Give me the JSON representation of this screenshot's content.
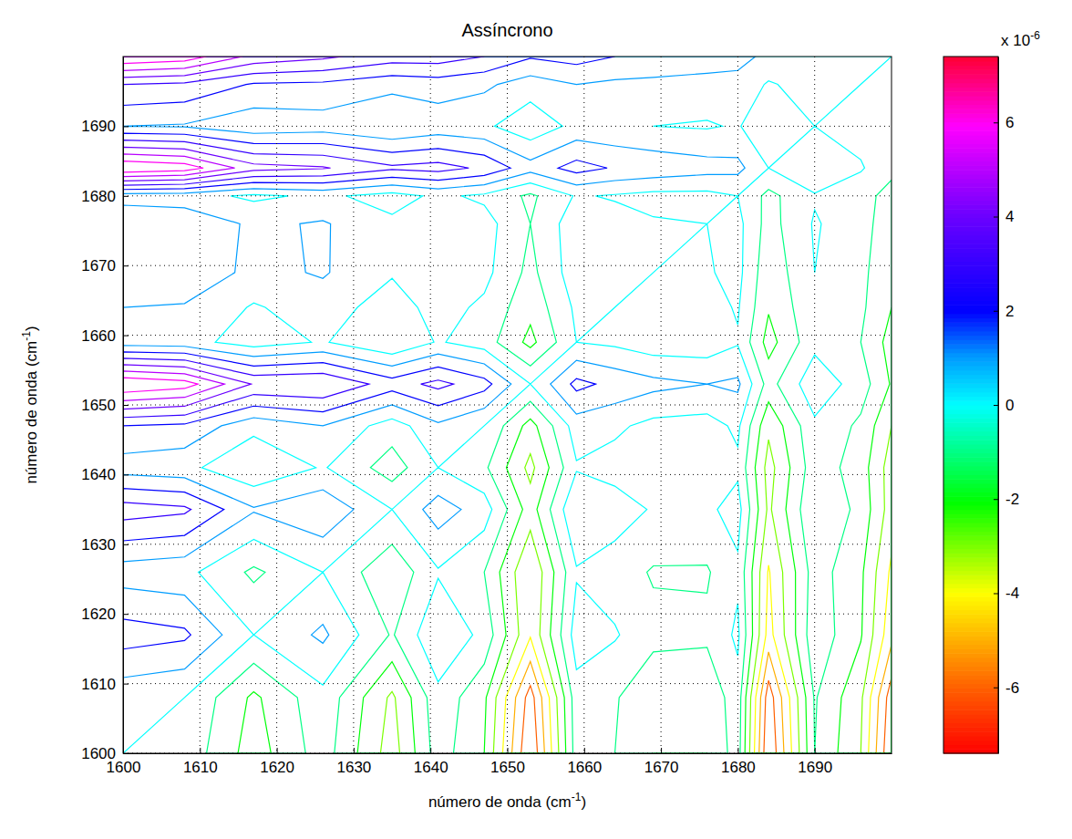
{
  "chart_data": {
    "type": "contour",
    "title": "Assíncrono",
    "xlabel": {
      "text": "número de onda (cm",
      "sup": "-1",
      "end": ")"
    },
    "ylabel": {
      "text": "número de onda (cm",
      "sup": "-1",
      "end": ")"
    },
    "x": [
      1600,
      1608,
      1617,
      1626,
      1635,
      1641,
      1647,
      1653,
      1659,
      1664,
      1669,
      1676,
      1680,
      1684,
      1690,
      1696,
      1700
    ],
    "y": [
      1600,
      1608,
      1617,
      1626,
      1635,
      1641,
      1647,
      1653,
      1659,
      1664,
      1669,
      1676,
      1680,
      1684,
      1690,
      1696,
      1700
    ],
    "z": [
      [
        0,
        -0.3,
        -2.5,
        -0.5,
        -3.5,
        -0.5,
        -2,
        -7,
        -0.5,
        -1,
        -2,
        -2,
        -0.5,
        -7,
        -1,
        -3,
        -7
      ],
      [
        0.3,
        0,
        -2.2,
        -0.3,
        -3.2,
        -0.3,
        -1.8,
        -6.5,
        -0.4,
        -0.9,
        -1.8,
        -1.8,
        -0.4,
        -6.6,
        -0.9,
        -2.8,
        -6.6
      ],
      [
        2.5,
        2.2,
        0,
        1.2,
        -1.1,
        0.9,
        -0.3,
        -3.9,
        0.5,
        0.1,
        -0.7,
        -0.8,
        0.2,
        -4.4,
        -0.3,
        -1.9,
        -4.7
      ],
      [
        0.5,
        0.3,
        -1.2,
        0,
        -1.8,
        -0.1,
        -1.0,
        -4.0,
        -0.1,
        -0.5,
        -1.1,
        -1.1,
        -0.2,
        -4.1,
        -0.5,
        -1.8,
        -4.2
      ],
      [
        3.5,
        3.2,
        1.1,
        1.8,
        0,
        1.5,
        0.5,
        -2.5,
        1.0,
        0.5,
        -0.1,
        -0.2,
        0.4,
        -3.2,
        0,
        -1.3,
        -3.5
      ],
      [
        0.5,
        0.3,
        -0.9,
        0.1,
        -1.5,
        0,
        -0.8,
        -3.3,
        -0.1,
        -0.4,
        -0.9,
        -0.9,
        -0.2,
        -3.4,
        -0.4,
        -1.5,
        -3.5
      ],
      [
        2,
        1.8,
        0.3,
        1.0,
        -0.5,
        0.8,
        0,
        -2.4,
        0.5,
        0.2,
        -0.3,
        -0.4,
        0.2,
        -2.8,
        -0.2,
        -1.2,
        -3.0
      ],
      [
        7,
        6.5,
        3.9,
        4.0,
        2.5,
        3.3,
        2.4,
        0,
        2.3,
        1.7,
        1.3,
        1.0,
        1.2,
        -1.4,
        0.7,
        -0.5,
        -2.1
      ],
      [
        0.5,
        0.4,
        -0.5,
        0.1,
        -1.0,
        0.1,
        -0.5,
        -2.3,
        0,
        -0.2,
        -0.6,
        -0.6,
        -0.1,
        -2.4,
        -0.3,
        -1.0,
        -2.4
      ],
      [
        1,
        0.9,
        -0.1,
        0.5,
        -0.5,
        0.4,
        -0.2,
        -1.7,
        0.2,
        0,
        -0.3,
        -0.4,
        0.1,
        -1.9,
        -0.2,
        -0.8,
        -2.0
      ],
      [
        2,
        1.8,
        0.7,
        1.1,
        0.1,
        0.9,
        0.3,
        -1.3,
        0.6,
        0.3,
        0,
        -0.1,
        0.3,
        -1.7,
        0,
        -0.7,
        -1.9
      ],
      [
        2,
        1.8,
        0.8,
        1.1,
        0.2,
        0.9,
        0.4,
        -1.0,
        0.6,
        0.4,
        0.1,
        0,
        0.3,
        -1.4,
        0.1,
        -0.6,
        -1.6
      ],
      [
        0.5,
        0.4,
        -0.2,
        0.2,
        -0.4,
        0.2,
        -0.2,
        -1.2,
        0.1,
        -0.1,
        -0.3,
        -0.3,
        0,
        -1.3,
        -0.1,
        -0.6,
        -1.4
      ],
      [
        7,
        6.6,
        4.4,
        4.1,
        3.2,
        3.4,
        2.8,
        1.4,
        2.4,
        1.9,
        1.7,
        1.4,
        1.3,
        0,
        0.9,
        0.1,
        -0.7
      ],
      [
        1,
        0.9,
        0.3,
        0.5,
        0,
        0.4,
        0.2,
        -0.7,
        0.3,
        0.2,
        0,
        -0.1,
        0.1,
        -0.9,
        0,
        -0.4,
        -1.0
      ],
      [
        3,
        2.8,
        1.9,
        1.8,
        1.3,
        1.5,
        1.2,
        0.5,
        1.0,
        0.8,
        0.7,
        0.6,
        0.6,
        -0.1,
        0.4,
        0,
        -0.4
      ],
      [
        7,
        6.6,
        4.7,
        4.2,
        3.5,
        3.5,
        3.0,
        2.1,
        2.4,
        2.0,
        1.9,
        1.6,
        1.4,
        0.7,
        1.0,
        0.4,
        0
      ]
    ],
    "levels": [
      -6,
      -5,
      -4,
      -3,
      -2,
      -1,
      0,
      1,
      2,
      3,
      4,
      5,
      6
    ],
    "xlim": [
      1600,
      1700
    ],
    "ylim": [
      1600,
      1700
    ],
    "xticks": [
      1600,
      1610,
      1620,
      1630,
      1640,
      1650,
      1660,
      1670,
      1680,
      1690
    ],
    "yticks": [
      1600,
      1610,
      1620,
      1630,
      1640,
      1650,
      1660,
      1670,
      1680,
      1690
    ],
    "grid": true,
    "colorbar_lim": [
      -7.4,
      7.4
    ],
    "colorbar_ticks": [
      -6,
      -4,
      -2,
      0,
      2,
      4,
      6
    ],
    "colorbar_multiplier": {
      "text": "x 10",
      "sup": "-6"
    }
  }
}
